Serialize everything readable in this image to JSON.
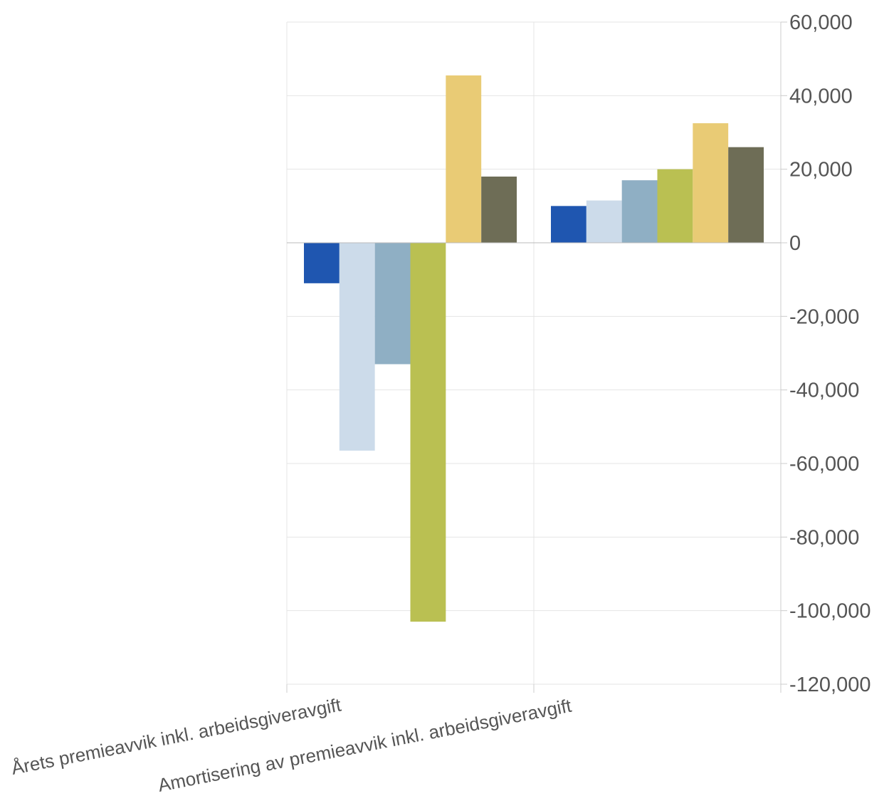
{
  "chart_data": {
    "type": "bar",
    "categories": [
      "Årets premieavvik inkl. arbeidsgiveravgift",
      "Amortisering av premieavvik inkl. arbeidsgiveravgift"
    ],
    "series": [
      {
        "values": [
          -11000,
          10000
        ],
        "color": "#1f56b0"
      },
      {
        "values": [
          -56500,
          11500
        ],
        "color": "#ccdbea"
      },
      {
        "values": [
          -33000,
          17000
        ],
        "color": "#8fafc4"
      },
      {
        "values": [
          -103000,
          20000
        ],
        "color": "#bac052"
      },
      {
        "values": [
          45500,
          32500
        ],
        "color": "#e9cb75"
      },
      {
        "values": [
          18000,
          26000
        ],
        "color": "#6e6d56"
      }
    ],
    "ylim": [
      -120000,
      60000
    ],
    "yticks": [
      60000,
      40000,
      20000,
      0,
      -20000,
      -40000,
      -60000,
      -80000,
      -100000,
      -120000
    ],
    "ytick_labels": [
      "60,000",
      "40,000",
      "20,000",
      "0",
      "-20,000",
      "-40,000",
      "-60,000",
      "-80,000",
      "-100,000",
      "-120,000"
    ],
    "y_axis_side": "right",
    "grid": true,
    "legend": "none",
    "title": "",
    "xlabel": "",
    "ylabel": ""
  }
}
